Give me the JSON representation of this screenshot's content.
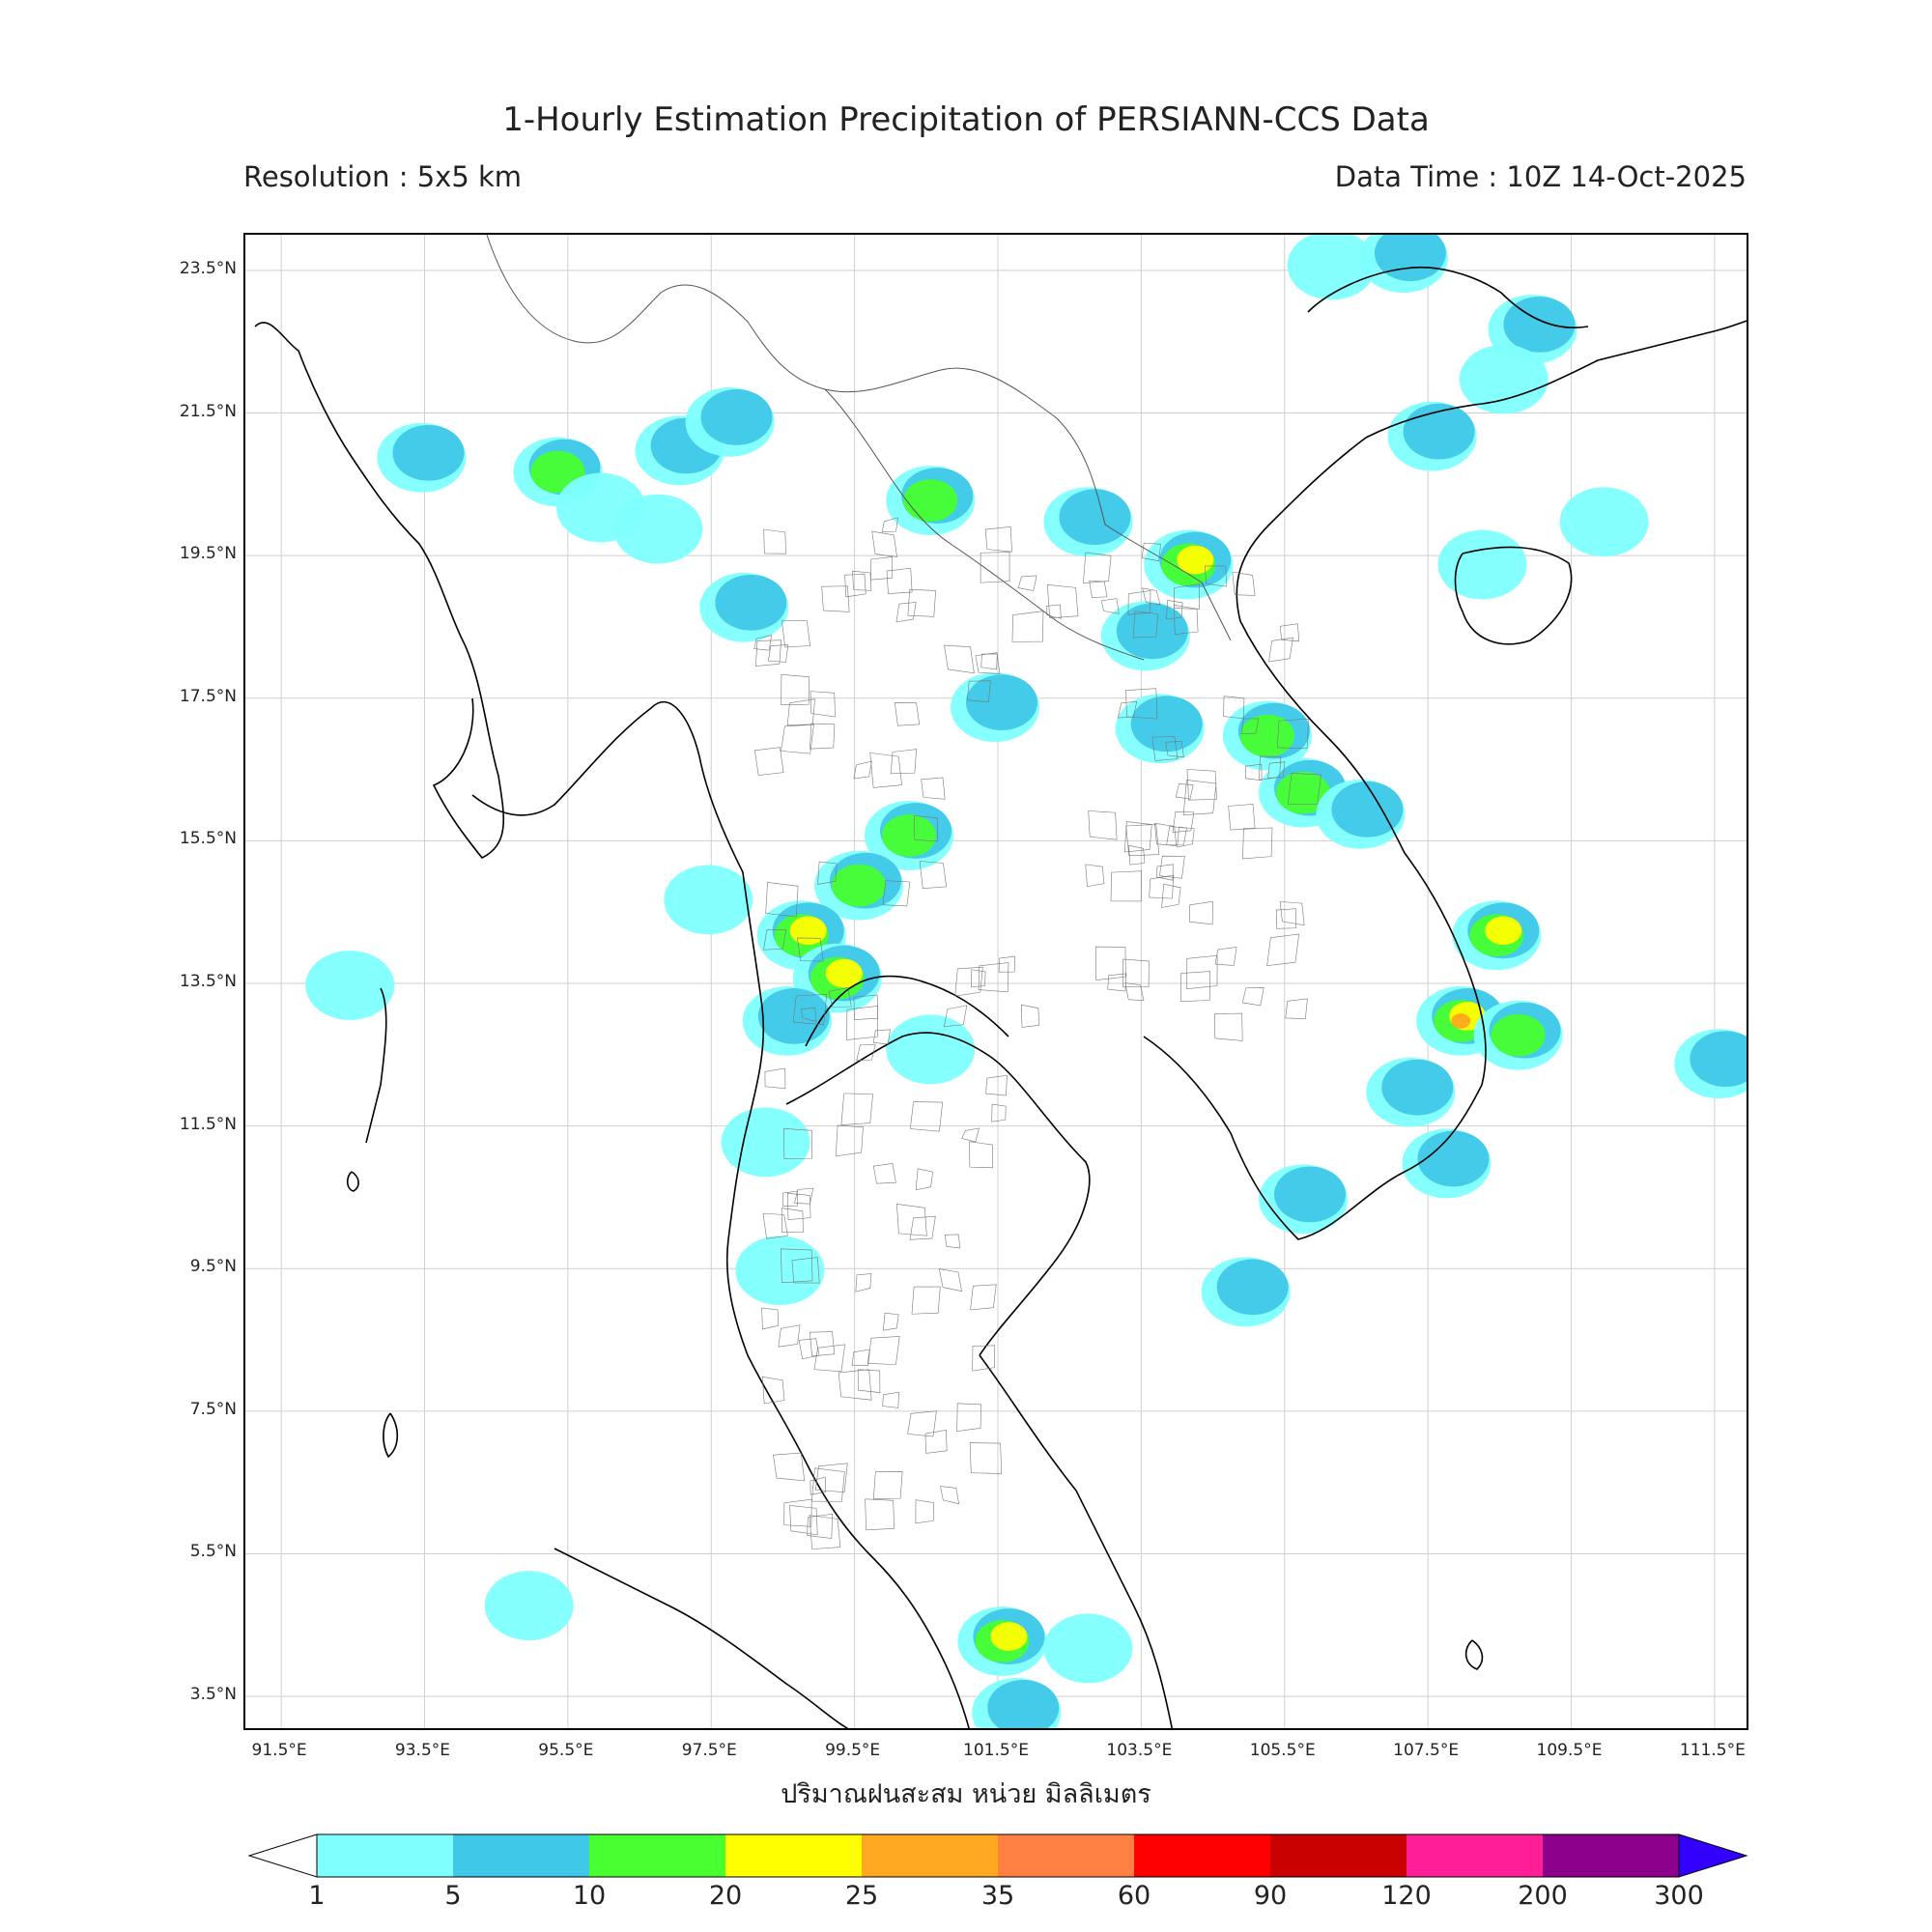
{
  "header": {
    "title": "1-Hourly Estimation Precipitation of PERSIANN-CCS Data",
    "resolution": "Resolution : 5x5 km",
    "data_time": "Data Time : 10Z 14-Oct-2025"
  },
  "map": {
    "region": "Thailand and surrounding Southeast Asia",
    "lat_ticks": [
      "23.5°N",
      "21.5°N",
      "19.5°N",
      "17.5°N",
      "15.5°N",
      "13.5°N",
      "11.5°N",
      "9.5°N",
      "7.5°N",
      "5.5°N",
      "3.5°N"
    ],
    "lon_ticks": [
      "91.5°E",
      "93.5°E",
      "95.5°E",
      "97.5°E",
      "99.5°E",
      "101.5°E",
      "103.5°E",
      "105.5°E",
      "107.5°E",
      "109.5°E",
      "111.5°E"
    ],
    "lat_values": [
      23.5,
      21.5,
      19.5,
      17.5,
      15.5,
      13.5,
      11.5,
      9.5,
      7.5,
      5.5,
      3.5
    ],
    "lon_values": [
      91.5,
      93.5,
      95.5,
      97.5,
      99.5,
      101.5,
      103.5,
      105.5,
      107.5,
      109.5,
      111.5
    ],
    "extent": {
      "lon_min": 91.0,
      "lon_max": 112.0,
      "lat_min": 3.0,
      "lat_max": 24.0
    },
    "grid": true,
    "rain_cells": [
      {
        "lon": 93.5,
        "lat": 20.9,
        "lvl": 2
      },
      {
        "lon": 95.4,
        "lat": 20.7,
        "lvl": 3
      },
      {
        "lon": 96.0,
        "lat": 20.2,
        "lvl": 1
      },
      {
        "lon": 98.0,
        "lat": 18.8,
        "lvl": 2
      },
      {
        "lon": 100.6,
        "lat": 20.3,
        "lvl": 3
      },
      {
        "lon": 102.8,
        "lat": 20.0,
        "lvl": 2
      },
      {
        "lon": 104.2,
        "lat": 19.4,
        "lvl": 4
      },
      {
        "lon": 103.6,
        "lat": 18.4,
        "lvl": 2
      },
      {
        "lon": 101.5,
        "lat": 17.4,
        "lvl": 2
      },
      {
        "lon": 103.8,
        "lat": 17.1,
        "lvl": 2
      },
      {
        "lon": 105.3,
        "lat": 17.0,
        "lvl": 3
      },
      {
        "lon": 105.8,
        "lat": 16.2,
        "lvl": 3
      },
      {
        "lon": 106.6,
        "lat": 15.9,
        "lvl": 2
      },
      {
        "lon": 100.3,
        "lat": 15.6,
        "lvl": 3
      },
      {
        "lon": 99.6,
        "lat": 14.9,
        "lvl": 3
      },
      {
        "lon": 98.8,
        "lat": 14.2,
        "lvl": 4
      },
      {
        "lon": 99.3,
        "lat": 13.6,
        "lvl": 4
      },
      {
        "lon": 98.6,
        "lat": 13.0,
        "lvl": 2
      },
      {
        "lon": 100.6,
        "lat": 12.6,
        "lvl": 1
      },
      {
        "lon": 108.0,
        "lat": 13.0,
        "lvl": 5
      },
      {
        "lon": 107.3,
        "lat": 12.0,
        "lvl": 2
      },
      {
        "lon": 108.5,
        "lat": 14.2,
        "lvl": 4
      },
      {
        "lon": 108.8,
        "lat": 12.8,
        "lvl": 3
      },
      {
        "lon": 105.8,
        "lat": 10.5,
        "lvl": 2
      },
      {
        "lon": 105.0,
        "lat": 9.2,
        "lvl": 2
      },
      {
        "lon": 107.8,
        "lat": 11.0,
        "lvl": 2
      },
      {
        "lon": 98.3,
        "lat": 11.3,
        "lvl": 1
      },
      {
        "lon": 98.5,
        "lat": 9.5,
        "lvl": 1
      },
      {
        "lon": 101.6,
        "lat": 4.3,
        "lvl": 4
      },
      {
        "lon": 101.8,
        "lat": 3.3,
        "lvl": 2
      },
      {
        "lon": 102.8,
        "lat": 4.2,
        "lvl": 1
      },
      {
        "lon": 95.0,
        "lat": 4.8,
        "lvl": 1
      },
      {
        "lon": 109.0,
        "lat": 22.7,
        "lvl": 2
      },
      {
        "lon": 107.2,
        "lat": 23.7,
        "lvl": 2
      },
      {
        "lon": 106.2,
        "lat": 23.6,
        "lvl": 1
      },
      {
        "lon": 107.6,
        "lat": 21.2,
        "lvl": 2
      },
      {
        "lon": 108.6,
        "lat": 22.0,
        "lvl": 1
      },
      {
        "lon": 110.0,
        "lat": 20.0,
        "lvl": 1
      },
      {
        "lon": 108.3,
        "lat": 19.4,
        "lvl": 1
      },
      {
        "lon": 97.1,
        "lat": 21.0,
        "lvl": 2
      },
      {
        "lon": 97.8,
        "lat": 21.4,
        "lvl": 2
      },
      {
        "lon": 96.8,
        "lat": 19.9,
        "lvl": 1
      },
      {
        "lon": 111.6,
        "lat": 12.4,
        "lvl": 2
      },
      {
        "lon": 97.5,
        "lat": 14.7,
        "lvl": 1
      },
      {
        "lon": 92.5,
        "lat": 13.5,
        "lvl": 1
      }
    ]
  },
  "xaxis": {
    "label": "ปริมาณฝนสะสม หน่วย มิลลิเมตร"
  },
  "colorbar": {
    "ticks": [
      "1",
      "5",
      "10",
      "20",
      "25",
      "35",
      "60",
      "90",
      "120",
      "200",
      "300"
    ],
    "colors": [
      "#80FFFF",
      "#40C8E8",
      "#48FF30",
      "#FFFF00",
      "#FFA820",
      "#FF8040",
      "#FF0000",
      "#C80000",
      "#FF1E96",
      "#8C008C"
    ],
    "extend_low_color": "#FFFFFF",
    "extend_high_color": "#3300FF"
  }
}
